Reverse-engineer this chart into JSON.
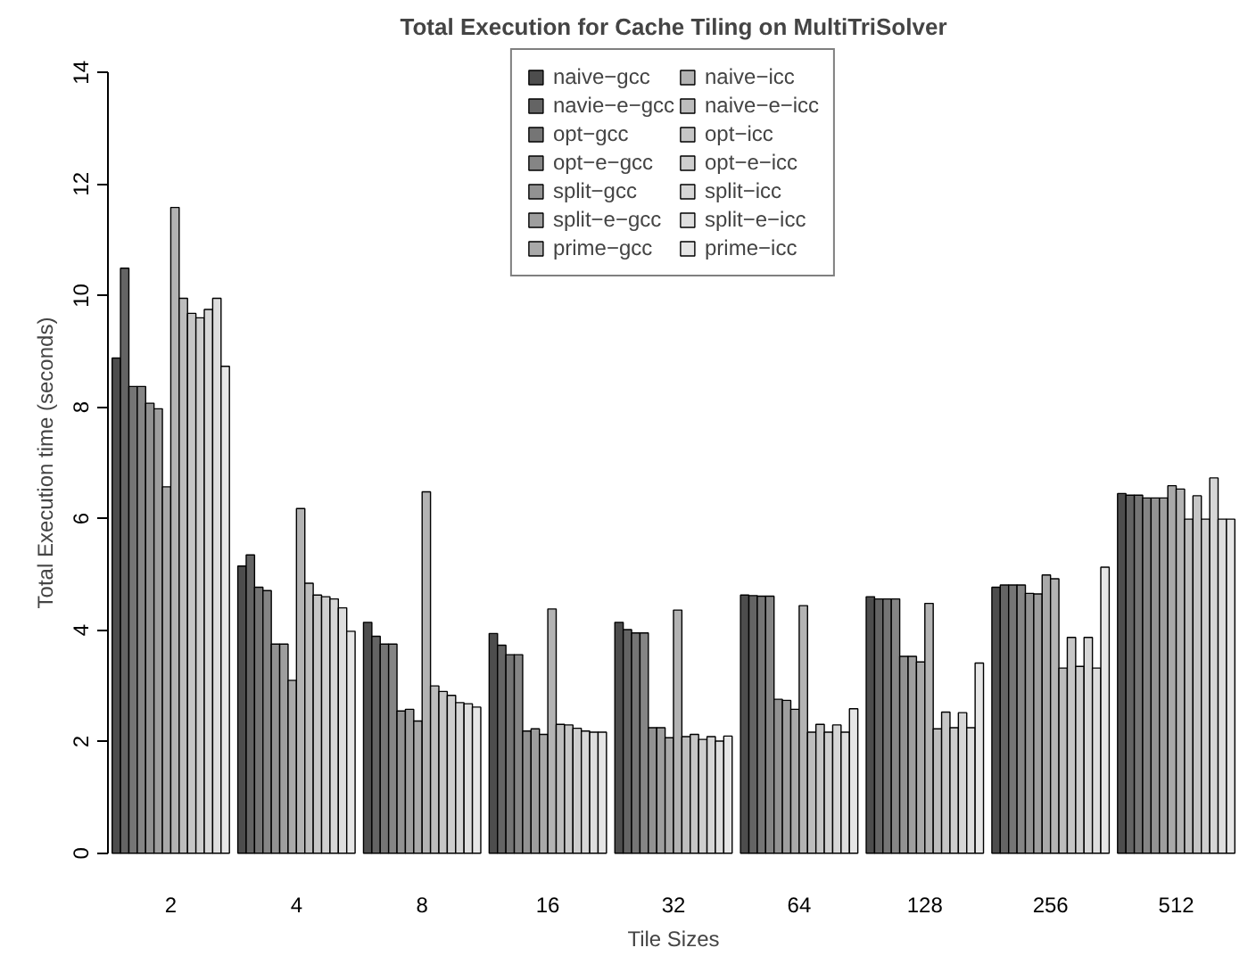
{
  "chart_data": {
    "type": "bar",
    "title": "Total Execution for Cache Tiling on MultiTriSolver",
    "xlabel": "Tile Sizes",
    "ylabel": "Total Execution time (seconds)",
    "categories": [
      "2",
      "4",
      "8",
      "16",
      "32",
      "64",
      "128",
      "256",
      "512"
    ],
    "ylim": [
      0,
      14
    ],
    "yticks": [
      0,
      2,
      4,
      6,
      8,
      10,
      12,
      14
    ],
    "grid": false,
    "legend": "top",
    "series": [
      {
        "name": "naive−gcc",
        "color": "#4d4d4d",
        "values": [
          8.88,
          5.15,
          4.14,
          3.94,
          4.14,
          4.63,
          4.6,
          4.77,
          6.45
        ]
      },
      {
        "name": "navie−e−gcc",
        "color": "#646464",
        "values": [
          10.49,
          5.35,
          3.89,
          3.73,
          4.01,
          4.62,
          4.56,
          4.81,
          6.42
        ]
      },
      {
        "name": "opt−gcc",
        "color": "#757575",
        "values": [
          8.37,
          4.77,
          3.75,
          3.56,
          3.95,
          4.61,
          4.56,
          4.81,
          6.42
        ]
      },
      {
        "name": "opt−e−gcc",
        "color": "#858585",
        "values": [
          8.37,
          4.71,
          3.75,
          3.56,
          3.95,
          4.61,
          4.56,
          4.81,
          6.37
        ]
      },
      {
        "name": "split−gcc",
        "color": "#929292",
        "values": [
          8.07,
          3.75,
          2.55,
          2.19,
          2.25,
          2.76,
          3.53,
          4.66,
          6.37
        ]
      },
      {
        "name": "split−e−gcc",
        "color": "#9e9e9e",
        "values": [
          7.97,
          3.75,
          2.58,
          2.23,
          2.25,
          2.74,
          3.53,
          4.65,
          6.37
        ]
      },
      {
        "name": "prime−gcc",
        "color": "#a9a9a9",
        "values": [
          6.57,
          3.1,
          2.37,
          2.13,
          2.07,
          2.58,
          3.43,
          4.99,
          6.59
        ]
      },
      {
        "name": "naive−icc",
        "color": "#b3b3b3",
        "values": [
          11.58,
          6.18,
          6.48,
          4.38,
          4.36,
          4.44,
          4.48,
          4.92,
          6.53
        ]
      },
      {
        "name": "naive−e−icc",
        "color": "#bdbdbd",
        "values": [
          9.95,
          4.84,
          3.0,
          2.31,
          2.09,
          2.17,
          2.23,
          3.32,
          5.99
        ]
      },
      {
        "name": "opt−icc",
        "color": "#c6c6c6",
        "values": [
          9.68,
          4.63,
          2.9,
          2.3,
          2.13,
          2.31,
          2.53,
          3.87,
          6.41
        ]
      },
      {
        "name": "opt−e−icc",
        "color": "#cecece",
        "values": [
          9.6,
          4.6,
          2.83,
          2.24,
          2.04,
          2.17,
          2.25,
          3.35,
          5.99
        ]
      },
      {
        "name": "split−icc",
        "color": "#d6d6d6",
        "values": [
          9.75,
          4.56,
          2.7,
          2.19,
          2.09,
          2.3,
          2.52,
          3.87,
          6.73
        ]
      },
      {
        "name": "split−e−icc",
        "color": "#dedede",
        "values": [
          9.95,
          4.4,
          2.68,
          2.17,
          2.01,
          2.17,
          2.25,
          3.32,
          5.99
        ]
      },
      {
        "name": "prime−icc",
        "color": "#e6e6e6",
        "values": [
          8.73,
          3.98,
          2.62,
          2.17,
          2.1,
          2.59,
          3.41,
          5.13,
          5.99
        ]
      }
    ]
  }
}
